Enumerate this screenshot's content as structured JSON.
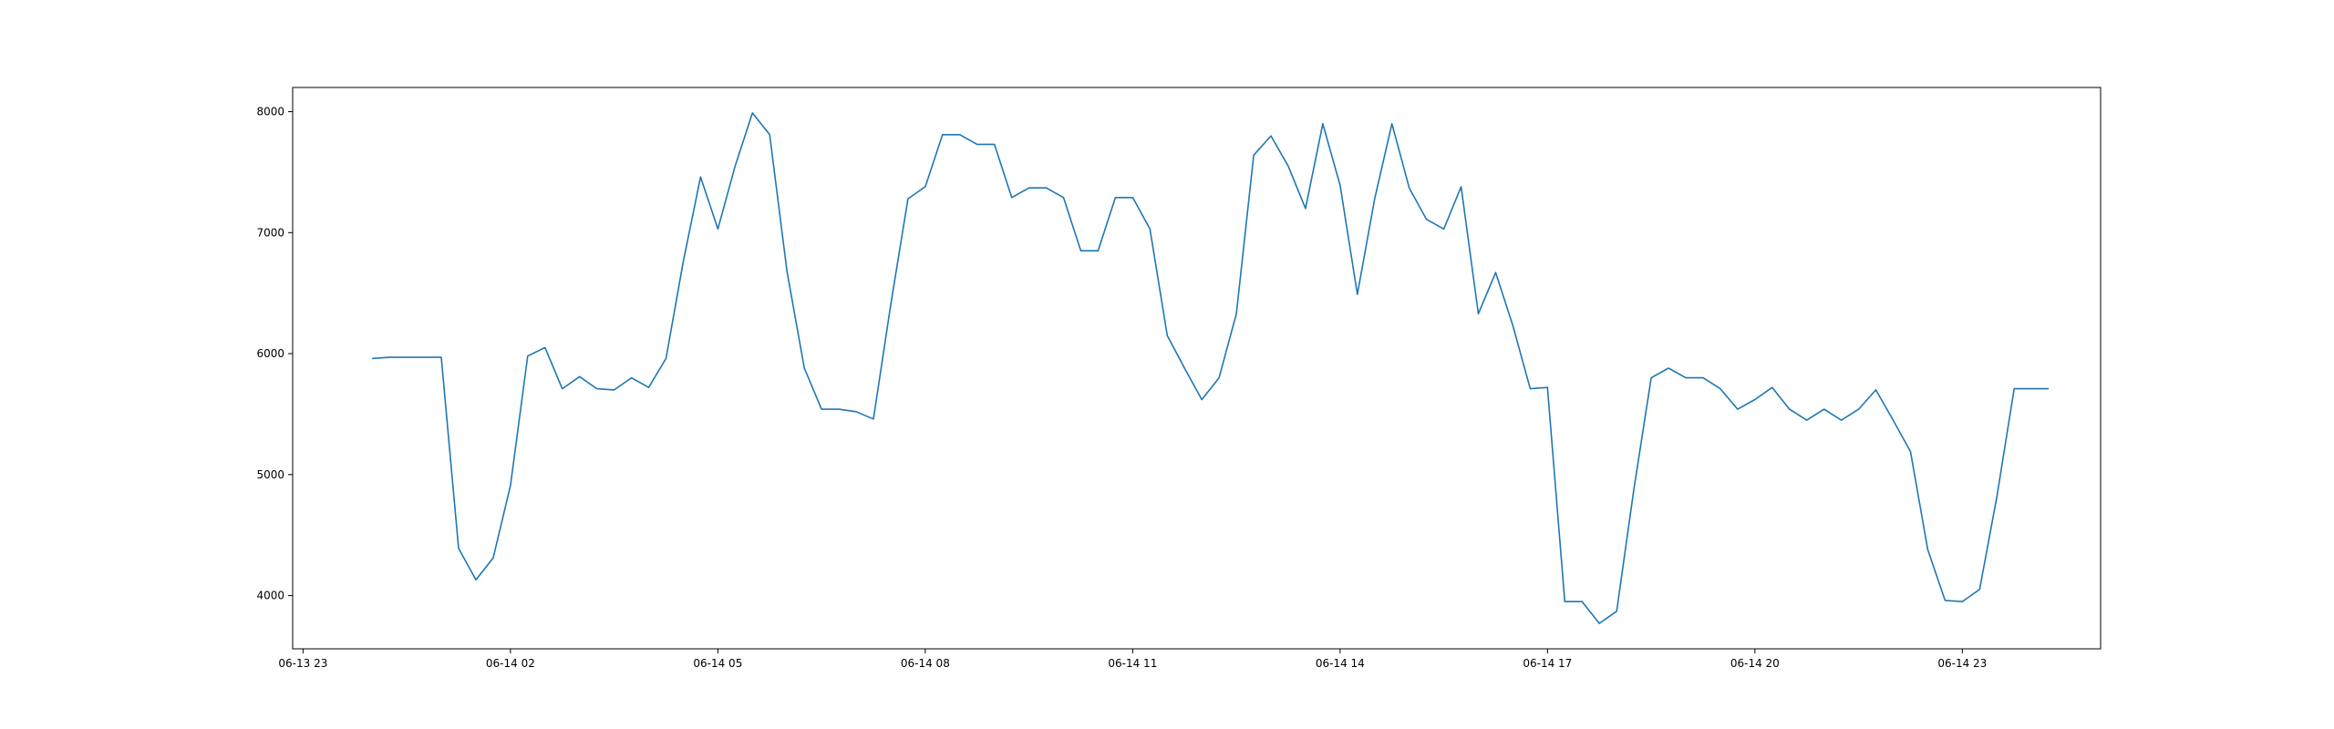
{
  "chart_data": {
    "type": "line",
    "title": "",
    "xlabel": "",
    "ylabel": "",
    "x_ticks": [
      "06-13 23",
      "06-14 02",
      "06-14 05",
      "06-14 08",
      "06-14 11",
      "06-14 14",
      "06-14 17",
      "06-14 20",
      "06-14 23"
    ],
    "x_tick_hours": [
      0,
      3,
      6,
      9,
      12,
      15,
      18,
      21,
      24
    ],
    "xlim_hours": [
      -0.15,
      26.0
    ],
    "y_ticks": [
      4000,
      5000,
      6000,
      7000,
      8000
    ],
    "ylim": [
      3560,
      8200
    ],
    "grid": false,
    "legend": "none",
    "line_color": "#1f77b4",
    "series": [
      {
        "x_hours": [
          1.0,
          1.25,
          1.5,
          1.75,
          2.0,
          2.25,
          2.5,
          2.75,
          3.0,
          3.25,
          3.5,
          3.75,
          4.0,
          4.25,
          4.5,
          4.75,
          5.0,
          5.25,
          5.5,
          5.75,
          6.0,
          6.25,
          6.5,
          6.75,
          7.0,
          7.25,
          7.5,
          7.75,
          8.0,
          8.25,
          8.5,
          8.75,
          9.0,
          9.25,
          9.5,
          9.75,
          10.0,
          10.25,
          10.5,
          10.75,
          11.0,
          11.25,
          11.5,
          11.75,
          12.0,
          12.25,
          12.5,
          12.75,
          13.0,
          13.25,
          13.5,
          13.75,
          14.0,
          14.25,
          14.5,
          14.75,
          15.0,
          15.25,
          15.5,
          15.75,
          16.0,
          16.25,
          16.5,
          16.75,
          17.0,
          17.25,
          17.5,
          17.75,
          18.0,
          18.25,
          18.5,
          18.75,
          19.0,
          19.25,
          19.5,
          19.75,
          20.0,
          20.25,
          20.5,
          20.75,
          21.0,
          21.25,
          21.5,
          21.75,
          22.0,
          22.25,
          22.5,
          22.75,
          23.0,
          23.25,
          23.5,
          23.75,
          24.0,
          24.25,
          24.5,
          24.75,
          25.0,
          25.25
        ],
        "values": [
          5960,
          5970,
          5970,
          5970,
          5970,
          4390,
          4130,
          4310,
          4910,
          5980,
          6050,
          5710,
          5810,
          5710,
          5700,
          5800,
          5720,
          5960,
          6760,
          7460,
          7030,
          7550,
          7990,
          7810,
          6680,
          5880,
          5540,
          5540,
          5520,
          5460,
          6400,
          7280,
          7380,
          7810,
          7810,
          7730,
          7730,
          7290,
          7370,
          7370,
          7290,
          6850,
          6850,
          7290,
          7290,
          7030,
          6150,
          5880,
          5620,
          5800,
          6330,
          7640,
          7800,
          7550,
          7200,
          7900,
          7390,
          6490,
          7280,
          7900,
          7370,
          7110,
          7030,
          7380,
          6330,
          6670,
          6230,
          5710,
          5720,
          3950,
          3950,
          3770,
          3870,
          4880,
          5800,
          5880,
          5800,
          5800,
          5710,
          5540,
          5620,
          5720,
          5540,
          5450,
          5540,
          5450,
          5540,
          5700,
          5450,
          5190,
          4380,
          3960,
          3950,
          4050,
          4820,
          5710,
          5710,
          5710
        ]
      }
    ]
  }
}
